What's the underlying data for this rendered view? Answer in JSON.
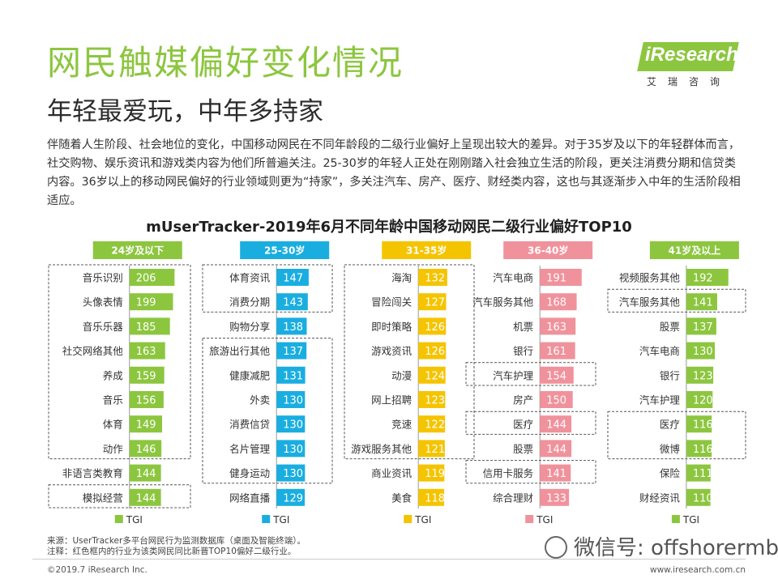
{
  "header": {
    "title": "网民触媒偏好变化情况",
    "subtitle": "年轻最爱玩，中年多持家",
    "logo_text": "iResearch",
    "logo_sub": "艾瑞咨询"
  },
  "body_text": "伴随着人生阶段、社会地位的变化，中国移动网民在不同年龄段的二级行业偏好上呈现出较大的差异。对于35岁及以下的年轻群体而言，社交购物、娱乐资讯和游戏类内容为他们所普遍关注。25-30岁的年轻人正处在刚刚踏入社会独立生活的阶段，更关注消费分期和信贷类内容。36岁以上的移动网民偏好的行业领域则更为“持家”，多关注汽车、房产、医疗、财经类内容，这也与其逐渐步入中年的生活阶段相适应。",
  "chart_data": {
    "type": "bar",
    "title": "mUserTracker-2019年6月不同年龄中国移动网民二级行业偏好TOP10",
    "legend_label": "TGI",
    "groups": [
      {
        "name": "24岁及以下",
        "color": "#8cc63f",
        "categories": [
          "音乐识别",
          "头像表情",
          "音乐乐器",
          "社交网络其他",
          "养成",
          "音乐",
          "体育",
          "动作",
          "非语言类教育",
          "模拟经营"
        ],
        "values": [
          206,
          199,
          185,
          163,
          159,
          156,
          149,
          146,
          144,
          144
        ],
        "highlight_boxes": [
          [
            0,
            7
          ],
          [
            9,
            9
          ]
        ]
      },
      {
        "name": "25-30岁",
        "color": "#1aaee0",
        "categories": [
          "体育资讯",
          "消费分期",
          "购物分享",
          "旅游出行其他",
          "健康减肥",
          "外卖",
          "消费信贷",
          "名片管理",
          "健身运动",
          "网络直播"
        ],
        "values": [
          147,
          143,
          138,
          137,
          131,
          130,
          130,
          130,
          130,
          129
        ],
        "highlight_boxes": [
          [
            0,
            1
          ],
          [
            3,
            8
          ]
        ]
      },
      {
        "name": "31-35岁",
        "color": "#f5c400",
        "categories": [
          "海淘",
          "冒险闯关",
          "即时策略",
          "游戏资讯",
          "动漫",
          "网上招聘",
          "竞速",
          "游戏服务其他",
          "商业资讯",
          "美食"
        ],
        "values": [
          132,
          127,
          126,
          126,
          124,
          123,
          122,
          121,
          119,
          118
        ],
        "highlight_boxes": [
          [
            0,
            7
          ]
        ]
      },
      {
        "name": "36-40岁",
        "color": "#f0929c",
        "categories": [
          "汽车电商",
          "汽车服务其他",
          "机票",
          "银行",
          "汽车护理",
          "房产",
          "医疗",
          "股票",
          "信用卡服务",
          "综合理财"
        ],
        "values": [
          191,
          168,
          163,
          161,
          154,
          150,
          144,
          144,
          141,
          133
        ],
        "highlight_boxes": [
          [
            4,
            4
          ],
          [
            6,
            6
          ],
          [
            8,
            8
          ]
        ]
      },
      {
        "name": "41岁及以上",
        "color": "#8cc63f",
        "categories": [
          "视频服务其他",
          "汽车服务其他",
          "股票",
          "汽车电商",
          "银行",
          "汽车护理",
          "医疗",
          "微博",
          "保险",
          "财经资讯"
        ],
        "values": [
          192,
          141,
          137,
          130,
          123,
          120,
          116,
          116,
          111,
          110
        ],
        "highlight_boxes": [
          [
            1,
            1
          ],
          [
            6,
            7
          ]
        ]
      }
    ]
  },
  "footer": {
    "source": "来源：UserTracker多平台网民行为监测数据库（桌面及智能终端）。",
    "note": "注释：红色框内的行业为该类网民同比新晋TOP10偏好二级行业。",
    "copyright": "©2019.7 iResearch Inc.",
    "website": "www.iresearch.com.cn",
    "watermark": "微信号: offshorermb"
  }
}
